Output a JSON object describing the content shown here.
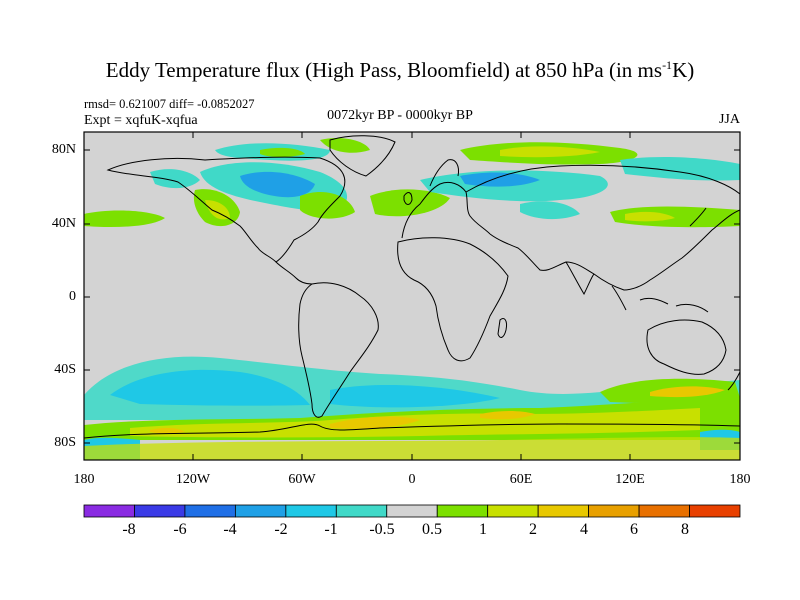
{
  "title": {
    "main": "Eddy Temperature flux (High Pass, Bloomfield) at 850 hPa (in ms",
    "sup": "-1",
    "tail": "K)"
  },
  "stats": "rmsd= 0.621007 diff= -0.0852027",
  "experiment": "Expt = xqfuK-xqfua",
  "period": "0072kyr BP - 0000kyr BP",
  "season": "JJA",
  "y_ticks": [
    "80N",
    "40N",
    "0",
    "40S",
    "80S"
  ],
  "x_ticks": [
    "180",
    "120W",
    "60W",
    "0",
    "60E",
    "120E",
    "180"
  ],
  "colorbar": {
    "labels": [
      "-8",
      "-6",
      "-4",
      "-2",
      "-1",
      "-0.5",
      "0.5",
      "1",
      "2",
      "4",
      "6",
      "8"
    ],
    "colors": [
      "#8a2be2",
      "#3a3ae6",
      "#1f6fe6",
      "#1fa0e6",
      "#1fc8e6",
      "#40d9c8",
      "#d3d3d3",
      "#7ce000",
      "#c8e000",
      "#e8c800",
      "#e8a000",
      "#e87000",
      "#e84000"
    ]
  },
  "map": {
    "projection": "cylindrical-equidistant",
    "lon_range": [
      -180,
      180
    ],
    "lat_range": [
      -90,
      90
    ],
    "background_color": "#d3d3d3"
  }
}
